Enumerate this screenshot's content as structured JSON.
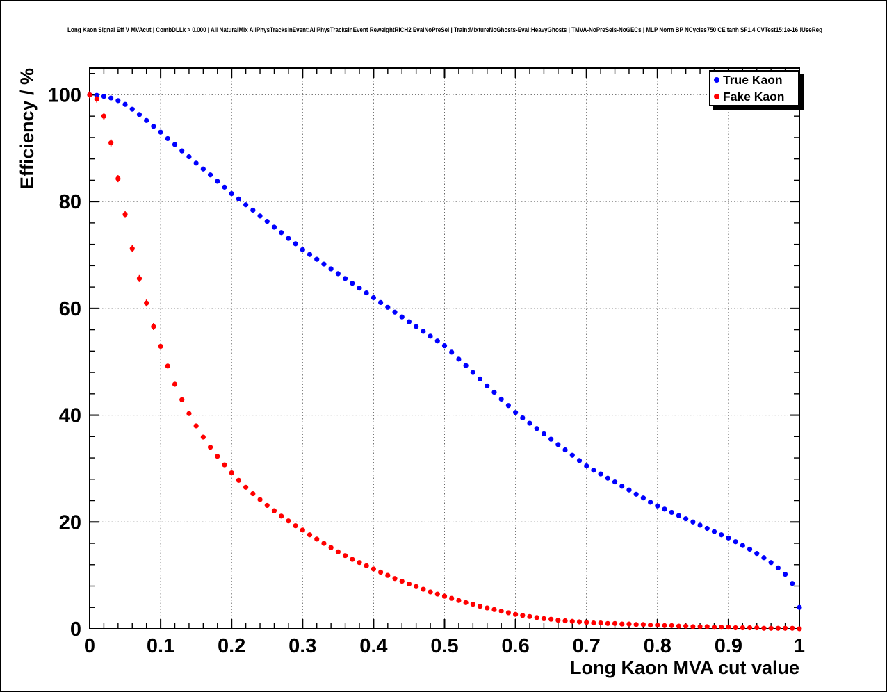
{
  "chart_data": {
    "type": "scatter",
    "title": "Long Kaon Signal Eff V MVAcut | CombDLLk > 0.000 | All NaturalMix AllPhysTracksInEvent:AllPhysTracksInEvent ReweightRICH2 EvalNoPreSel | Train:MixtureNoGhosts-Eval:HeavyGhosts | TMVA-NoPreSels-NoGECs | MLP Norm BP NCycles750 CE tanh SF1.4 CVTest15:1e-16 !UseReg",
    "xlabel": "Long Kaon MVA cut value",
    "ylabel": "Efficiency / %",
    "xlim": [
      0,
      1
    ],
    "ylim": [
      0,
      105
    ],
    "xticks": [
      0,
      0.1,
      0.2,
      0.3,
      0.4,
      0.5,
      0.6,
      0.7,
      0.8,
      0.9,
      1
    ],
    "xtick_labels": [
      "0",
      "0.1",
      "0.2",
      "0.3",
      "0.4",
      "0.5",
      "0.6",
      "0.7",
      "0.8",
      "0.9",
      "1"
    ],
    "yticks": [
      0,
      20,
      40,
      60,
      80,
      100
    ],
    "ytick_labels": [
      "0",
      "20",
      "40",
      "60",
      "80",
      "100"
    ],
    "grid": true,
    "legend": {
      "position": "top-right",
      "entries": [
        {
          "label": "True Kaon",
          "color": "#0000ff"
        },
        {
          "label": "Fake Kaon",
          "color": "#ff0000"
        }
      ]
    },
    "x": [
      0,
      0.01,
      0.02,
      0.03,
      0.04,
      0.05,
      0.06,
      0.07,
      0.08,
      0.09,
      0.1,
      0.11,
      0.12,
      0.13,
      0.14,
      0.15,
      0.16,
      0.17,
      0.18,
      0.19,
      0.2,
      0.21,
      0.22,
      0.23,
      0.24,
      0.25,
      0.26,
      0.27,
      0.28,
      0.29,
      0.3,
      0.31,
      0.32,
      0.33,
      0.34,
      0.35,
      0.36,
      0.37,
      0.38,
      0.39,
      0.4,
      0.41,
      0.42,
      0.43,
      0.44,
      0.45,
      0.46,
      0.47,
      0.48,
      0.49,
      0.5,
      0.51,
      0.52,
      0.53,
      0.54,
      0.55,
      0.56,
      0.57,
      0.58,
      0.59,
      0.6,
      0.61,
      0.62,
      0.63,
      0.64,
      0.65,
      0.66,
      0.67,
      0.68,
      0.69,
      0.7,
      0.71,
      0.72,
      0.73,
      0.74,
      0.75,
      0.76,
      0.77,
      0.78,
      0.79,
      0.8,
      0.81,
      0.82,
      0.83,
      0.84,
      0.85,
      0.86,
      0.87,
      0.88,
      0.89,
      0.9,
      0.91,
      0.92,
      0.93,
      0.94,
      0.95,
      0.96,
      0.97,
      0.98,
      0.99,
      1
    ],
    "series": [
      {
        "name": "True Kaon",
        "color": "#0000ff",
        "values": [
          100.0,
          99.9,
          99.7,
          99.4,
          98.9,
          98.2,
          97.3,
          96.3,
          95.2,
          94.1,
          93.0,
          91.8,
          90.7,
          89.5,
          88.4,
          87.2,
          86.1,
          85.0,
          83.8,
          82.7,
          81.5,
          80.5,
          79.4,
          78.4,
          77.3,
          76.3,
          75.2,
          74.2,
          73.1,
          72.1,
          71.0,
          70.1,
          69.2,
          68.3,
          67.4,
          66.5,
          65.6,
          64.7,
          63.8,
          62.9,
          62.0,
          61.1,
          60.2,
          59.3,
          58.4,
          57.5,
          56.6,
          55.7,
          54.8,
          53.9,
          53.0,
          51.8,
          50.5,
          49.3,
          48.0,
          46.8,
          45.5,
          44.3,
          43.0,
          41.8,
          40.5,
          39.5,
          38.5,
          37.5,
          36.5,
          35.5,
          34.5,
          33.5,
          32.5,
          31.5,
          30.5,
          29.7,
          29.0,
          28.2,
          27.5,
          26.7,
          26.0,
          25.2,
          24.5,
          23.7,
          23.0,
          22.4,
          21.8,
          21.2,
          20.6,
          20.0,
          19.4,
          18.8,
          18.2,
          17.6,
          17.0,
          16.3,
          15.6,
          14.9,
          14.1,
          13.3,
          12.4,
          11.4,
          10.2,
          8.5,
          4.0
        ]
      },
      {
        "name": "Fake Kaon",
        "color": "#ff0000",
        "values": [
          100.0,
          99.2,
          96.0,
          91.0,
          84.3,
          77.6,
          71.2,
          65.6,
          61.0,
          56.6,
          52.9,
          49.2,
          45.8,
          42.9,
          40.3,
          38.0,
          35.9,
          34.0,
          32.3,
          30.7,
          29.2,
          27.8,
          26.5,
          25.3,
          24.2,
          23.1,
          22.1,
          21.1,
          20.2,
          19.3,
          18.5,
          17.6,
          16.8,
          16.0,
          15.2,
          14.4,
          13.7,
          13.0,
          12.4,
          11.8,
          11.2,
          10.6,
          10.0,
          9.4,
          8.9,
          8.4,
          7.9,
          7.4,
          6.9,
          6.5,
          6.1,
          5.7,
          5.3,
          4.9,
          4.6,
          4.2,
          3.9,
          3.6,
          3.3,
          3.0,
          2.7,
          2.5,
          2.3,
          2.1,
          1.9,
          1.8,
          1.6,
          1.5,
          1.4,
          1.3,
          1.2,
          1.1,
          1.1,
          1.0,
          1.0,
          0.9,
          0.9,
          0.8,
          0.8,
          0.7,
          0.7,
          0.6,
          0.6,
          0.5,
          0.5,
          0.4,
          0.4,
          0.4,
          0.3,
          0.3,
          0.3,
          0.2,
          0.2,
          0.2,
          0.2,
          0.1,
          0.1,
          0.1,
          0.1,
          0.1,
          0.0
        ]
      }
    ]
  }
}
